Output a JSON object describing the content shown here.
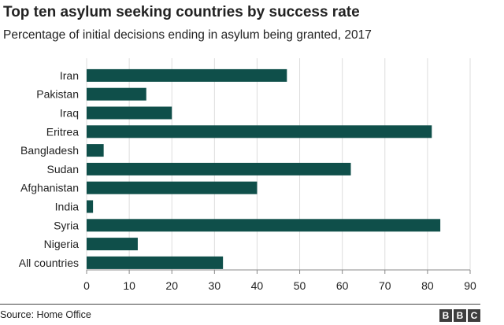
{
  "chart_data": {
    "type": "bar",
    "orientation": "horizontal",
    "title": "Top ten asylum seeking countries by success rate",
    "subtitle": "Percentage of initial decisions ending in asylum being granted, 2017",
    "categories": [
      "Iran",
      "Pakistan",
      "Iraq",
      "Eritrea",
      "Bangladesh",
      "Sudan",
      "Afghanistan",
      "India",
      "Syria",
      "Nigeria",
      "All countries"
    ],
    "values": [
      47,
      14,
      20,
      81,
      4,
      62,
      40,
      1.5,
      83,
      12,
      32
    ],
    "xlim": [
      0,
      90
    ],
    "xticks": [
      0,
      10,
      20,
      30,
      40,
      50,
      60,
      70,
      80,
      90
    ],
    "xlabel": "",
    "ylabel": "",
    "bar_color": "#0f4f4a",
    "grid": true
  },
  "footer": {
    "source": "Source: Home Office",
    "brand_letters": [
      "B",
      "B",
      "C"
    ]
  }
}
